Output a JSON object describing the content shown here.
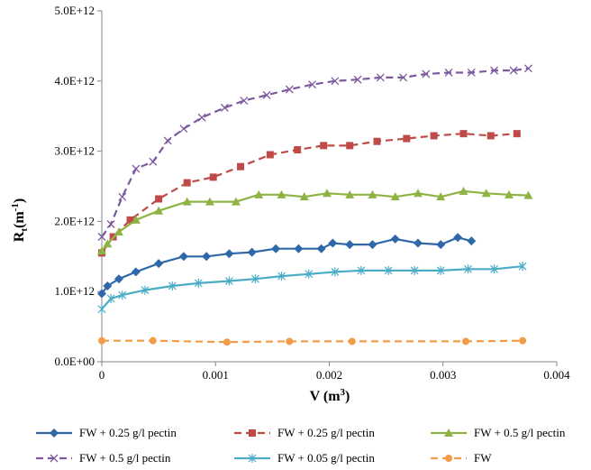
{
  "chart_data": {
    "type": "line",
    "title": "",
    "xlabel": {
      "main": "V (m",
      "sup": "3",
      "end": ")"
    },
    "ylabel": {
      "main": "R",
      "sub": "t",
      "mid": "(m",
      "sup": "-1",
      "end": ")"
    },
    "xlim": [
      0,
      0.004
    ],
    "ylim": [
      0,
      5000000000000.0
    ],
    "x_ticks": [
      0,
      0.001,
      0.002,
      0.003,
      0.004
    ],
    "x_tick_labels": [
      "0",
      "0.001",
      "0.002",
      "0.003",
      "0.004"
    ],
    "y_ticks": [
      0,
      1000000000000.0,
      2000000000000.0,
      3000000000000.0,
      4000000000000.0,
      5000000000000.0
    ],
    "y_tick_labels": [
      "0.0E+00",
      "1.0E+12",
      "2.0E+12",
      "3.0E+12",
      "4.0E+12",
      "5.0E+12"
    ],
    "grid": false,
    "legend_position": "bottom",
    "series": [
      {
        "name": "FW + 0.25 g/l pectin",
        "color": "#2E68A8",
        "dash": "solid",
        "marker": "diamond",
        "x": [
          0,
          5e-05,
          0.00015,
          0.0003,
          0.0005,
          0.00072,
          0.00092,
          0.00112,
          0.00132,
          0.00153,
          0.00173,
          0.00193,
          0.00203,
          0.00218,
          0.00238,
          0.00258,
          0.00278,
          0.00298,
          0.00313,
          0.00325
        ],
        "y": [
          970000000000.0,
          1080000000000.0,
          1180000000000.0,
          1280000000000.0,
          1400000000000.0,
          1500000000000.0,
          1500000000000.0,
          1540000000000.0,
          1560000000000.0,
          1610000000000.0,
          1610000000000.0,
          1610000000000.0,
          1690000000000.0,
          1670000000000.0,
          1670000000000.0,
          1750000000000.0,
          1690000000000.0,
          1670000000000.0,
          1770000000000.0,
          1720000000000.0
        ]
      },
      {
        "name": "FW + 0.25 g/l pectin",
        "color": "#BE4B48",
        "dash": "dashed",
        "marker": "square",
        "x": [
          0,
          0.0001,
          0.00025,
          0.0005,
          0.00075,
          0.00098,
          0.00122,
          0.00148,
          0.00172,
          0.00195,
          0.00218,
          0.00242,
          0.00268,
          0.00292,
          0.00318,
          0.00342,
          0.00365
        ],
        "y": [
          1550000000000.0,
          1780000000000.0,
          2020000000000.0,
          2320000000000.0,
          2550000000000.0,
          2630000000000.0,
          2780000000000.0,
          2950000000000.0,
          3020000000000.0,
          3080000000000.0,
          3080000000000.0,
          3140000000000.0,
          3180000000000.0,
          3220000000000.0,
          3250000000000.0,
          3220000000000.0,
          3250000000000.0
        ]
      },
      {
        "name": "FW + 0.5 g/l pectin",
        "color": "#8DB443",
        "dash": "solid",
        "marker": "triangle",
        "x": [
          0,
          5e-05,
          0.00015,
          0.0003,
          0.0005,
          0.00075,
          0.00095,
          0.00118,
          0.00138,
          0.00158,
          0.00178,
          0.00198,
          0.00218,
          0.00238,
          0.00258,
          0.00278,
          0.00298,
          0.00318,
          0.00338,
          0.00358,
          0.00375
        ],
        "y": [
          1580000000000.0,
          1680000000000.0,
          1850000000000.0,
          2020000000000.0,
          2150000000000.0,
          2280000000000.0,
          2280000000000.0,
          2280000000000.0,
          2380000000000.0,
          2380000000000.0,
          2350000000000.0,
          2400000000000.0,
          2380000000000.0,
          2380000000000.0,
          2350000000000.0,
          2400000000000.0,
          2350000000000.0,
          2430000000000.0,
          2400000000000.0,
          2380000000000.0,
          2370000000000.0
        ]
      },
      {
        "name": "FW + 0.5 g/l pectin",
        "color": "#7D5A9E",
        "dash": "dashed",
        "marker": "x",
        "x": [
          0,
          8e-05,
          0.00018,
          0.0003,
          0.00045,
          0.00058,
          0.00072,
          0.00088,
          0.00108,
          0.00125,
          0.00145,
          0.00165,
          0.00185,
          0.00205,
          0.00225,
          0.00245,
          0.00265,
          0.00285,
          0.00305,
          0.00325,
          0.00345,
          0.00362,
          0.00375
        ],
        "y": [
          1780000000000.0,
          1960000000000.0,
          2350000000000.0,
          2750000000000.0,
          2850000000000.0,
          3150000000000.0,
          3320000000000.0,
          3480000000000.0,
          3620000000000.0,
          3720000000000.0,
          3800000000000.0,
          3880000000000.0,
          3950000000000.0,
          4000000000000.0,
          4020000000000.0,
          4050000000000.0,
          4050000000000.0,
          4100000000000.0,
          4120000000000.0,
          4120000000000.0,
          4150000000000.0,
          4150000000000.0,
          4180000000000.0
        ]
      },
      {
        "name": "FW + 0.05 g/l pectin",
        "color": "#4BACC6",
        "dash": "solid",
        "marker": "asterisk",
        "x": [
          0,
          8e-05,
          0.00018,
          0.00038,
          0.00062,
          0.00085,
          0.00112,
          0.00135,
          0.00158,
          0.00182,
          0.00205,
          0.00228,
          0.00252,
          0.00275,
          0.00298,
          0.00322,
          0.00345,
          0.0037
        ],
        "y": [
          750000000000.0,
          900000000000.0,
          950000000000.0,
          1020000000000.0,
          1080000000000.0,
          1120000000000.0,
          1150000000000.0,
          1180000000000.0,
          1220000000000.0,
          1250000000000.0,
          1280000000000.0,
          1300000000000.0,
          1300000000000.0,
          1300000000000.0,
          1300000000000.0,
          1320000000000.0,
          1320000000000.0,
          1360000000000.0
        ]
      },
      {
        "name": "FW",
        "color": "#F39C45",
        "dash": "dashed",
        "marker": "circle",
        "x": [
          0,
          0.00045,
          0.0011,
          0.00165,
          0.0022,
          0.0032,
          0.0037
        ],
        "y": [
          300000000000.0,
          300000000000.0,
          280000000000.0,
          290000000000.0,
          290000000000.0,
          290000000000.0,
          300000000000.0
        ]
      }
    ]
  }
}
